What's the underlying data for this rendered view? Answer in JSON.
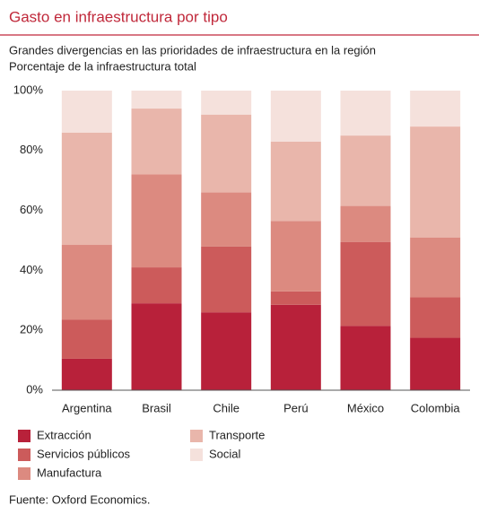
{
  "chart_data": {
    "type": "stacked_bar",
    "title": "Gasto en infraestructura por tipo",
    "subtitle": [
      "Grandes divergencias en las prioridades de infraestructura en la región",
      "Porcentaje de la infraestructura total"
    ],
    "source": "Fuente: Oxford Economics.",
    "categories": [
      "Argentina",
      "Brasil",
      "Chile",
      "Perú",
      "México",
      "Colombia"
    ],
    "series": [
      {
        "name": "Extracción",
        "color": "#b8213a",
        "values": [
          10.5,
          29,
          26,
          28.5,
          21.5,
          17.5
        ]
      },
      {
        "name": "Servicios públicos",
        "color": "#cc5b5b",
        "values": [
          13,
          12,
          22,
          4.5,
          28,
          13.5
        ]
      },
      {
        "name": "Manufactura",
        "color": "#dc8a80",
        "values": [
          25,
          31,
          18,
          23.5,
          12,
          20
        ]
      },
      {
        "name": "Transporte",
        "color": "#e9b6ab",
        "values": [
          37.5,
          22,
          26,
          26.5,
          23.5,
          37
        ]
      },
      {
        "name": "Social",
        "color": "#f5e1dc",
        "values": [
          14,
          6,
          8,
          17,
          15,
          12
        ]
      }
    ],
    "ylim": [
      0,
      100
    ],
    "yticks": [
      {
        "value": 0,
        "label": "0%"
      },
      {
        "value": 20,
        "label": "20%"
      },
      {
        "value": 40,
        "label": "40%"
      },
      {
        "value": 60,
        "label": "60%"
      },
      {
        "value": 80,
        "label": "80%"
      },
      {
        "value": 100,
        "label": "100%"
      }
    ],
    "grid": false
  }
}
